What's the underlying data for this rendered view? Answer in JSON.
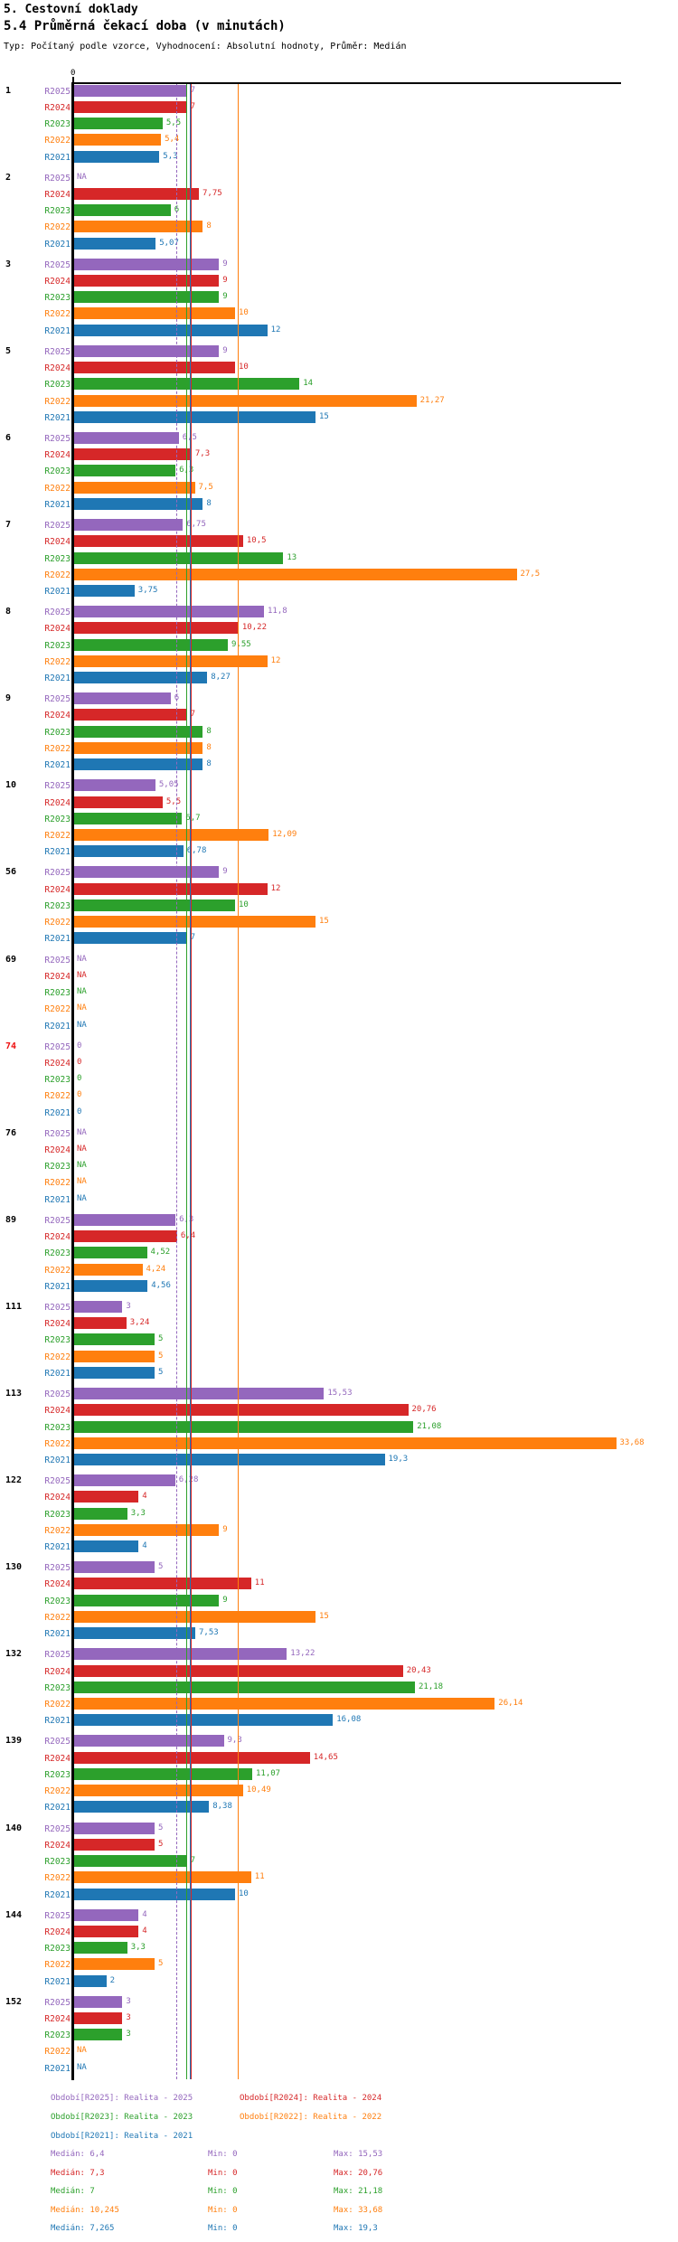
{
  "header": {
    "title": "5. Cestovní doklady",
    "subtitle": "5.4 Průměrná čekací doba (v minutách)",
    "meta": "Typ: Počítaný podle vzorce, Vyhodnocení: Absolutní hodnoty, Průměr: Medián"
  },
  "axis": {
    "origin_label": "0"
  },
  "palette": {
    "R2025": "#9467bd",
    "R2024": "#d62728",
    "R2023": "#2ca02c",
    "R2022": "#ff7f0e",
    "R2021": "#1f77b4",
    "group_label_default": "#000000",
    "group_label_alert": "#ee1111"
  },
  "chart_data": {
    "type": "bar",
    "orientation": "horizontal",
    "title": "5.4 Průměrná čekací doba (v minutách)",
    "xlabel": "",
    "ylabel": "",
    "x_origin_label": "0",
    "grid": false,
    "series_names": [
      "R2025",
      "R2024",
      "R2023",
      "R2022",
      "R2021"
    ],
    "groups": [
      {
        "label": "1",
        "alert": false,
        "display": [
          "7",
          "7",
          "5,5",
          "5,4",
          "5,3"
        ],
        "values": [
          7,
          7,
          5.5,
          5.4,
          5.3
        ]
      },
      {
        "label": "2",
        "alert": false,
        "display": [
          "NA",
          "7,75",
          "6",
          "8",
          "5,07"
        ],
        "values": [
          null,
          7.75,
          6,
          8,
          5.07
        ]
      },
      {
        "label": "3",
        "alert": false,
        "display": [
          "9",
          "9",
          "9",
          "10",
          "12"
        ],
        "values": [
          9,
          9,
          9,
          10,
          12
        ]
      },
      {
        "label": "5",
        "alert": false,
        "display": [
          "9",
          "10",
          "14",
          "21,27",
          "15"
        ],
        "values": [
          9,
          10,
          14,
          21.27,
          15
        ]
      },
      {
        "label": "6",
        "alert": false,
        "display": [
          "6,5",
          "7,3",
          "6,3",
          "7,5",
          "8"
        ],
        "values": [
          6.5,
          7.3,
          6.3,
          7.5,
          8
        ]
      },
      {
        "label": "7",
        "alert": false,
        "display": [
          "6,75",
          "10,5",
          "13",
          "27,5",
          "3,75"
        ],
        "values": [
          6.75,
          10.5,
          13,
          27.5,
          3.75
        ]
      },
      {
        "label": "8",
        "alert": false,
        "display": [
          "11,8",
          "10,22",
          "9,55",
          "12",
          "8,27"
        ],
        "values": [
          11.8,
          10.22,
          9.55,
          12,
          8.27
        ]
      },
      {
        "label": "9",
        "alert": false,
        "display": [
          "6",
          "7",
          "8",
          "8",
          "8"
        ],
        "values": [
          6,
          7,
          8,
          8,
          8
        ]
      },
      {
        "label": "10",
        "alert": false,
        "display": [
          "5,05",
          "5,5",
          "6,7",
          "12,09",
          "6,78"
        ],
        "values": [
          5.05,
          5.5,
          6.7,
          12.09,
          6.78
        ]
      },
      {
        "label": "56",
        "alert": false,
        "display": [
          "9",
          "12",
          "10",
          "15",
          "7"
        ],
        "values": [
          9,
          12,
          10,
          15,
          7
        ]
      },
      {
        "label": "69",
        "alert": false,
        "display": [
          "NA",
          "NA",
          "NA",
          "NA",
          "NA"
        ],
        "values": [
          null,
          null,
          null,
          null,
          null
        ]
      },
      {
        "label": "74",
        "alert": true,
        "display": [
          "0",
          "0",
          "0",
          "0",
          "0"
        ],
        "values": [
          0,
          0,
          0,
          0,
          0
        ]
      },
      {
        "label": "76",
        "alert": false,
        "display": [
          "NA",
          "NA",
          "NA",
          "NA",
          "NA"
        ],
        "values": [
          null,
          null,
          null,
          null,
          null
        ]
      },
      {
        "label": "89",
        "alert": false,
        "display": [
          "6,3",
          "6,4",
          "4,52",
          "4,24",
          "4,56"
        ],
        "values": [
          6.3,
          6.4,
          4.52,
          4.24,
          4.56
        ]
      },
      {
        "label": "111",
        "alert": false,
        "display": [
          "3",
          "3,24",
          "5",
          "5",
          "5"
        ],
        "values": [
          3,
          3.24,
          5,
          5,
          5
        ]
      },
      {
        "label": "113",
        "alert": false,
        "display": [
          "15,53",
          "20,76",
          "21,08",
          "33,68",
          "19,3"
        ],
        "values": [
          15.53,
          20.76,
          21.08,
          33.68,
          19.3
        ]
      },
      {
        "label": "122",
        "alert": false,
        "display": [
          "6,28",
          "4",
          "3,3",
          "9",
          "4"
        ],
        "values": [
          6.28,
          4,
          3.3,
          9,
          4
        ]
      },
      {
        "label": "130",
        "alert": false,
        "display": [
          "5",
          "11",
          "9",
          "15",
          "7,53"
        ],
        "values": [
          5,
          11,
          9,
          15,
          7.53
        ]
      },
      {
        "label": "132",
        "alert": false,
        "display": [
          "13,22",
          "20,43",
          "21,18",
          "26,14",
          "16,08"
        ],
        "values": [
          13.22,
          20.43,
          21.18,
          26.14,
          16.08
        ]
      },
      {
        "label": "139",
        "alert": false,
        "display": [
          "9,3",
          "14,65",
          "11,07",
          "10,49",
          "8,38"
        ],
        "values": [
          9.3,
          14.65,
          11.07,
          10.49,
          8.38
        ]
      },
      {
        "label": "140",
        "alert": false,
        "display": [
          "5",
          "5",
          "7",
          "11",
          "10"
        ],
        "values": [
          5,
          5,
          7,
          11,
          10
        ]
      },
      {
        "label": "144",
        "alert": false,
        "display": [
          "4",
          "4",
          "3,3",
          "5",
          "2"
        ],
        "values": [
          4,
          4,
          3.3,
          5,
          2
        ]
      },
      {
        "label": "152",
        "alert": false,
        "display": [
          "3",
          "3",
          "3",
          "NA",
          "NA"
        ],
        "values": [
          3,
          3,
          3,
          null,
          null
        ]
      }
    ],
    "median_lines": [
      {
        "series": "R2025",
        "value": 6.4,
        "dashed": true
      },
      {
        "series": "R2023",
        "value": 7.0,
        "dashed": false
      },
      {
        "series": "R2021",
        "value": 7.265,
        "dashed": false
      },
      {
        "series": "R2024",
        "value": 7.3,
        "dashed": false
      },
      {
        "series": "R2022",
        "value": 10.245,
        "dashed": false
      }
    ]
  },
  "legend": {
    "rows": [
      [
        {
          "series": "R2025",
          "text": "Období[R2025]: Realita - 2025"
        },
        {
          "series": "R2024",
          "text": "Období[R2024]: Realita - 2024"
        }
      ],
      [
        {
          "series": "R2023",
          "text": "Období[R2023]: Realita - 2023"
        },
        {
          "series": "R2022",
          "text": "Období[R2022]: Realita - 2022"
        }
      ],
      [
        {
          "series": "R2021",
          "text": "Období[R2021]: Realita - 2021"
        }
      ]
    ]
  },
  "stats": {
    "labels": {
      "median": "Medián",
      "min": "Min",
      "max": "Max"
    },
    "rows": [
      {
        "series": "R2025",
        "median": "6,4",
        "min": "0",
        "max": "15,53"
      },
      {
        "series": "R2024",
        "median": "7,3",
        "min": "0",
        "max": "20,76"
      },
      {
        "series": "R2023",
        "median": "7",
        "min": "0",
        "max": "21,18"
      },
      {
        "series": "R2022",
        "median": "10,245",
        "min": "0",
        "max": "33,68"
      },
      {
        "series": "R2021",
        "median": "7,265",
        "min": "0",
        "max": "19,3"
      }
    ]
  }
}
